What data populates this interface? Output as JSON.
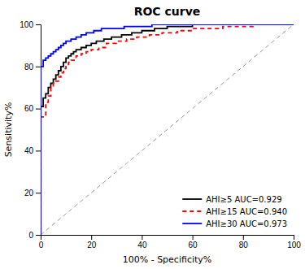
{
  "chart_data": {
    "type": "step",
    "title": "ROC curve",
    "xlabel": "100% - Specificity%",
    "ylabel": "Sensitivity%",
    "xlim": [
      0,
      100
    ],
    "ylim": [
      0,
      100
    ],
    "xticks": [
      0,
      20,
      40,
      60,
      80,
      100
    ],
    "yticks": [
      0,
      20,
      40,
      60,
      80,
      100
    ],
    "grid": false,
    "legend": "lower right",
    "reference_line": {
      "x": [
        0,
        100
      ],
      "y": [
        0,
        100
      ],
      "color": "#999999",
      "line_style": "dashed"
    },
    "series": [
      {
        "name": "AHI≥5 AUC=0.929",
        "color": "#000000",
        "line_style": "solid",
        "x": [
          0,
          0,
          0,
          0,
          0,
          0,
          1,
          1,
          1,
          2,
          2,
          3,
          3,
          4,
          4,
          5,
          5,
          6,
          6,
          7,
          7,
          8,
          9,
          10,
          11,
          12,
          13,
          14,
          16,
          18,
          20,
          22,
          25,
          28,
          32,
          36,
          40,
          45,
          50,
          55,
          60,
          65,
          70,
          75,
          80,
          85,
          90,
          95,
          100
        ],
        "values": [
          0,
          55,
          57,
          59,
          60,
          61,
          61,
          63,
          65,
          65,
          67,
          67,
          70,
          70,
          72,
          72,
          74,
          74,
          76,
          76,
          78,
          80,
          82,
          84,
          85,
          86,
          87,
          88,
          89,
          90,
          91,
          92,
          93,
          94,
          95,
          96,
          97,
          98,
          99,
          99,
          100,
          100,
          100,
          100,
          100,
          100,
          100,
          100,
          100
        ]
      },
      {
        "name": "AHI≥15 AUC=0.940",
        "color": "#FF0000",
        "line_style": "dashed",
        "x": [
          0,
          0,
          0,
          0,
          0,
          1,
          1,
          2,
          2,
          3,
          3,
          4,
          4,
          5,
          5,
          6,
          7,
          8,
          9,
          10,
          11,
          12,
          14,
          16,
          18,
          20,
          23,
          26,
          30,
          34,
          38,
          43,
          48,
          54,
          60,
          66,
          72,
          78,
          84,
          90,
          95,
          100
        ],
        "values": [
          0,
          50,
          53,
          55,
          56,
          56,
          57,
          57,
          63,
          63,
          66,
          66,
          70,
          70,
          72,
          73,
          75,
          77,
          79,
          80,
          82,
          83,
          85,
          86,
          87,
          88,
          89,
          91,
          92,
          93,
          94,
          95,
          96,
          97,
          98,
          98,
          99,
          99,
          100,
          100,
          100,
          100
        ]
      },
      {
        "name": "AHI≥30 AUC=0.973",
        "color": "#0000FF",
        "line_style": "solid",
        "x": [
          0,
          0,
          0,
          1,
          1,
          2,
          3,
          4,
          5,
          6,
          7,
          8,
          9,
          10,
          12,
          14,
          16,
          18,
          21,
          24,
          28,
          33,
          38,
          44,
          50,
          56,
          62,
          70,
          80,
          90,
          100
        ],
        "values": [
          0,
          75,
          80,
          80,
          83,
          84,
          85,
          86,
          87,
          88,
          89,
          90,
          91,
          92,
          93,
          94,
          95,
          96,
          97,
          98,
          98,
          99,
          99,
          100,
          100,
          100,
          100,
          100,
          100,
          100,
          100
        ]
      }
    ]
  }
}
